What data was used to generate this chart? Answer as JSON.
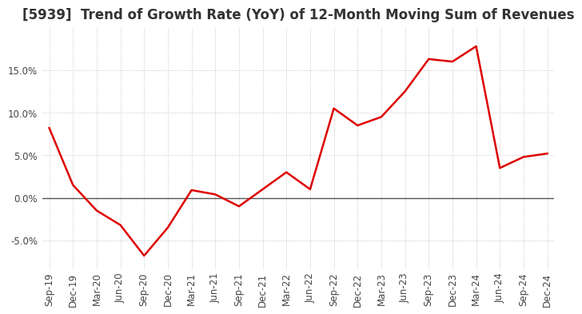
{
  "title": "[5939]  Trend of Growth Rate (YoY) of 12-Month Moving Sum of Revenues",
  "x_labels": [
    "Sep-19",
    "Dec-19",
    "Mar-20",
    "Jun-20",
    "Sep-20",
    "Dec-20",
    "Mar-21",
    "Jun-21",
    "Sep-21",
    "Dec-21",
    "Mar-22",
    "Jun-22",
    "Sep-22",
    "Dec-22",
    "Mar-23",
    "Jun-23",
    "Sep-23",
    "Dec-23",
    "Mar-24",
    "Jun-24",
    "Sep-24",
    "Dec-24"
  ],
  "y_values": [
    8.2,
    1.5,
    -1.5,
    -3.2,
    -6.8,
    -3.5,
    0.9,
    0.4,
    -1.0,
    1.0,
    3.0,
    1.0,
    10.5,
    8.5,
    9.5,
    12.5,
    16.3,
    16.0,
    17.8,
    3.5,
    4.8,
    5.2
  ],
  "line_color": "#dd0000",
  "background_color": "#ffffff",
  "grid_color": "#bbbbbb",
  "ylim": [
    -8.5,
    20
  ],
  "yticks": [
    -5.0,
    0.0,
    5.0,
    10.0,
    15.0
  ],
  "title_fontsize": 12,
  "tick_fontsize": 8.5
}
